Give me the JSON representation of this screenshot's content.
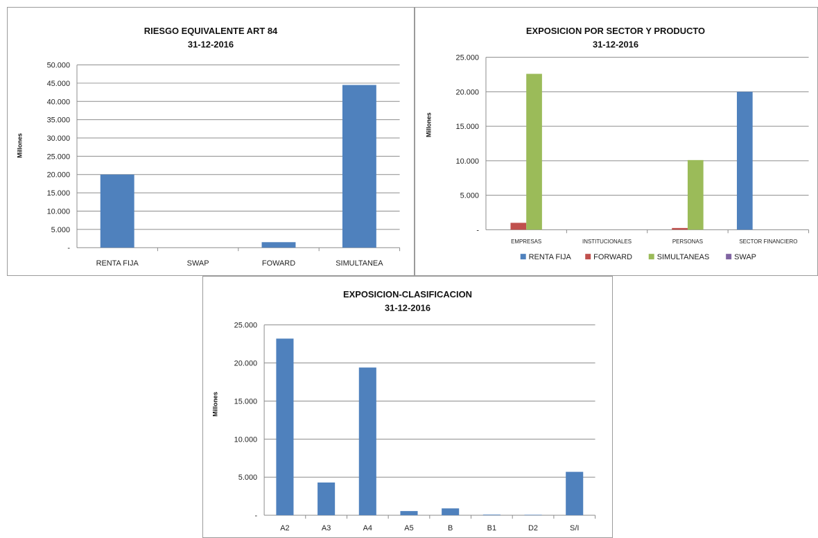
{
  "colors": {
    "renta_fija": "#4F81BD",
    "forward": "#C0504D",
    "simultaneas": "#9BBB59",
    "swap": "#8064A2"
  },
  "chart_data": [
    {
      "type": "bar",
      "title": "RIESGO EQUIVALENTE ART 84",
      "subtitle": "31-12-2016",
      "ylabel": "Millones",
      "xlabel": "",
      "categories": [
        "RENTA FIJA",
        "SWAP",
        "FOWARD",
        "SIMULTANEA"
      ],
      "series": [
        {
          "values": [
            20000,
            0,
            1500,
            44500
          ],
          "color": "#4F81BD"
        }
      ],
      "ylim": [
        0,
        50000
      ],
      "yticks": [
        0,
        5000,
        10000,
        15000,
        20000,
        25000,
        30000,
        35000,
        40000,
        45000,
        50000
      ],
      "ytick_labels": [
        "-",
        "5.000",
        "10.000",
        "15.000",
        "20.000",
        "25.000",
        "30.000",
        "35.000",
        "40.000",
        "45.000",
        "50.000"
      ],
      "grid": true,
      "legend": "none"
    },
    {
      "type": "bar",
      "title": "EXPOSICION POR SECTOR Y PRODUCTO",
      "subtitle": "31-12-2016",
      "ylabel": "Millones",
      "xlabel": "",
      "categories": [
        "EMPRESAS",
        "INSTITUCIONALES",
        "PERSONAS",
        "SECTOR FINANCIERO"
      ],
      "series": [
        {
          "name": "RENTA FIJA",
          "values": [
            0,
            0,
            0,
            20000
          ],
          "color": "#4F81BD"
        },
        {
          "name": "FORWARD",
          "values": [
            1000,
            0,
            250,
            0
          ],
          "color": "#C0504D"
        },
        {
          "name": "SIMULTANEAS",
          "values": [
            22600,
            0,
            10100,
            0
          ],
          "color": "#9BBB59"
        },
        {
          "name": "SWAP",
          "values": [
            0,
            0,
            0,
            0
          ],
          "color": "#8064A2"
        }
      ],
      "ylim": [
        0,
        25000
      ],
      "yticks": [
        0,
        5000,
        10000,
        15000,
        20000,
        25000
      ],
      "ytick_labels": [
        "-",
        "5.000",
        "10.000",
        "15.000",
        "20.000",
        "25.000"
      ],
      "grid": true,
      "legend": "bottom"
    },
    {
      "type": "bar",
      "title": "EXPOSICION-CLASIFICACION",
      "subtitle": "31-12-2016",
      "ylabel": "Millones",
      "xlabel": "",
      "categories": [
        "A2",
        "A3",
        "A4",
        "A5",
        "B",
        "B1",
        "D2",
        "S/I"
      ],
      "series": [
        {
          "values": [
            23200,
            4300,
            19400,
            550,
            900,
            80,
            60,
            5700
          ],
          "color": "#4F81BD"
        }
      ],
      "ylim": [
        0,
        25000
      ],
      "yticks": [
        0,
        5000,
        10000,
        15000,
        20000,
        25000
      ],
      "ytick_labels": [
        "-",
        "5.000",
        "10.000",
        "15.000",
        "20.000",
        "25.000"
      ],
      "grid": true,
      "legend": "none"
    }
  ]
}
